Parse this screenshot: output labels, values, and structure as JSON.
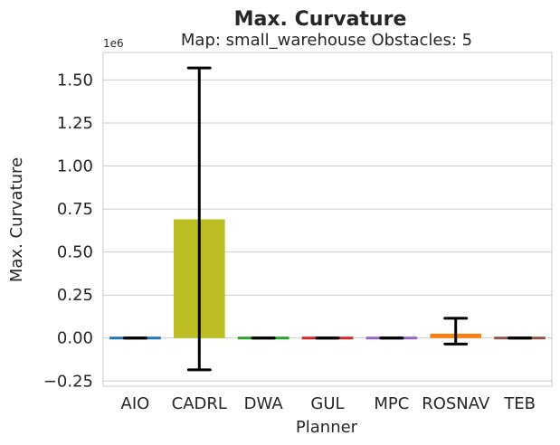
{
  "chart_data": {
    "type": "bar",
    "suptitle": "Max. Curvature",
    "title": "Map: small_warehouse Obstacles: 5",
    "xlabel": "Planner",
    "ylabel": "Max. Curvature",
    "y_scale_offset": "1e6",
    "ylim": [
      -0.28,
      1.66
    ],
    "yticks": [
      -0.25,
      0.0,
      0.25,
      0.5,
      0.75,
      1.0,
      1.25,
      1.5
    ],
    "ytick_labels": [
      "−0.25",
      "0.00",
      "0.25",
      "0.50",
      "0.75",
      "1.00",
      "1.25",
      "1.50"
    ],
    "categories": [
      "AIO",
      "CADRL",
      "DWA",
      "GUL",
      "MPC",
      "ROSNAV",
      "TEB"
    ],
    "values": [
      0.0,
      0.69,
      0.0,
      0.0,
      0.0,
      0.025,
      0.0
    ],
    "error_low": [
      0.0,
      -0.185,
      0.0,
      0.0,
      0.0,
      -0.035,
      0.0
    ],
    "error_high": [
      0.0,
      1.57,
      0.0,
      0.0,
      0.0,
      0.115,
      0.0
    ],
    "bar_colors": [
      "#1f77b4",
      "#bcbd22",
      "#2ca02c",
      "#d62728",
      "#9467bd",
      "#ff7f0e",
      "#8c564b"
    ],
    "grid": true
  }
}
